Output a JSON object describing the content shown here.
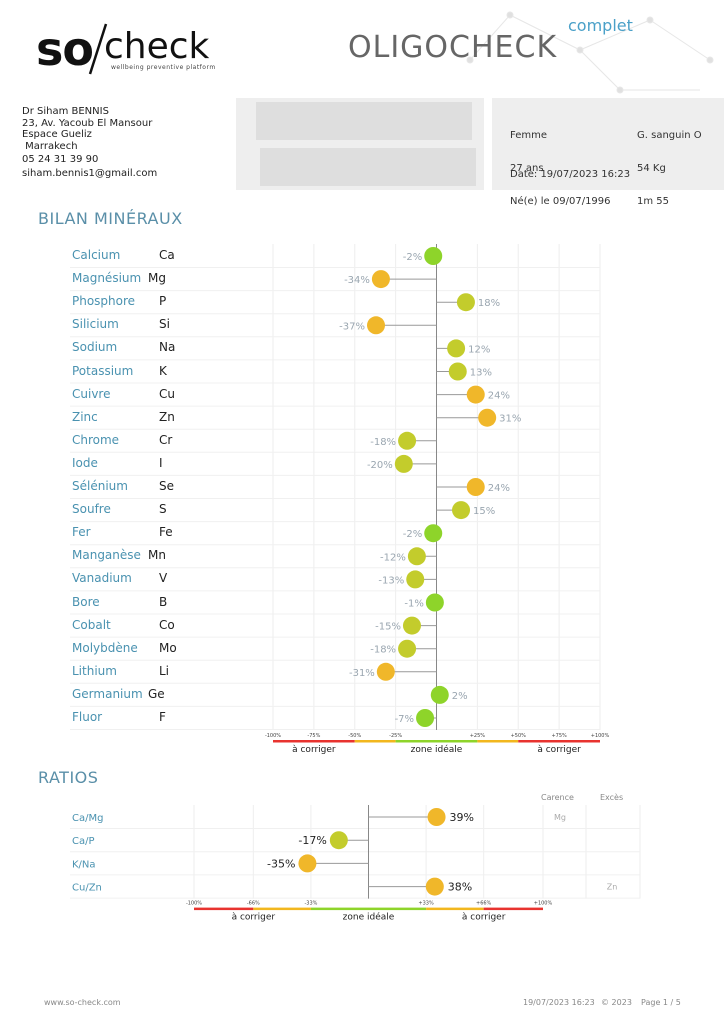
{
  "logo": {
    "so": "so",
    "check": "check",
    "tagline": "wellbeing preventive platform"
  },
  "header": {
    "title": "OLIGOCHECK",
    "subtitle": "complet"
  },
  "doctor": {
    "lines": [
      "Dr Siham BENNIS",
      "23, Av. Yacoub El Mansour",
      "Espace Gueliz",
      " Marrakech",
      "05 24 31 39 90",
      "siham.bennis1@gmail.com"
    ]
  },
  "patient": {
    "sex": "Femme",
    "age": "27 ans",
    "birth": "Né(e) le 09/07/1996",
    "blood": "G. sanguin O",
    "weight": "54 Kg",
    "height": "1m 55",
    "date": "Date: 19/07/2023 16:23"
  },
  "minerals_title": "BILAN MINÉRAUX",
  "ratios_title": "RATIOS",
  "colors": {
    "green": "#8ed42a",
    "yellowgreen": "#c3cc2c",
    "orange": "#f0b72a"
  },
  "chart_data": [
    {
      "type": "scatter",
      "title": "BILAN MINÉRAUX",
      "categories": [
        "Calcium",
        "Magnésium",
        "Phosphore",
        "Silicium",
        "Sodium",
        "Potassium",
        "Cuivre",
        "Zinc",
        "Chrome",
        "Iode",
        "Sélénium",
        "Soufre",
        "Fer",
        "Manganèse",
        "Vanadium",
        "Bore",
        "Cobalt",
        "Molybdène",
        "Lithium",
        "Germanium",
        "Fluor"
      ],
      "symbols": [
        "Ca",
        "Mg",
        "P",
        "Si",
        "Na",
        "K",
        "Cu",
        "Zn",
        "Cr",
        "I",
        "Se",
        "S",
        "Fe",
        "Mn",
        "V",
        "B",
        "Co",
        "Mo",
        "Li",
        "Ge",
        "F"
      ],
      "values": [
        -2,
        -34,
        18,
        -37,
        12,
        13,
        24,
        31,
        -18,
        -20,
        24,
        15,
        -2,
        -12,
        -13,
        -1,
        -15,
        -18,
        -31,
        2,
        -7
      ],
      "labels": [
        "-2%",
        "-34%",
        "18%",
        "-37%",
        "12%",
        "13%",
        "24%",
        "31%",
        "-18%",
        "-20%",
        "24%",
        "15%",
        "-2%",
        "-12%",
        "-13%",
        "-1%",
        "-15%",
        "-18%",
        "-31%",
        "2%",
        "-7%"
      ],
      "xlim": [
        -100,
        100
      ],
      "ticks": [
        "-100%",
        "-75%",
        "-50%",
        "-25%",
        "+25%",
        "+50%",
        "+75%",
        "+100%"
      ],
      "tick_values": [
        -100,
        -75,
        -50,
        -25,
        25,
        50,
        75,
        100
      ],
      "zones": [
        "à corriger",
        "zone idéale",
        "à corriger"
      ]
    },
    {
      "type": "scatter",
      "title": "RATIOS",
      "categories": [
        "Ca/Mg",
        "Ca/P",
        "K/Na",
        "Cu/Zn"
      ],
      "values": [
        39,
        -17,
        -35,
        38
      ],
      "labels": [
        "39%",
        "-17%",
        "-35%",
        "38%"
      ],
      "carence": [
        "Mg",
        "",
        "",
        ""
      ],
      "exces": [
        "",
        "",
        "",
        "Zn"
      ],
      "col_carence": "Carence",
      "col_exces": "Excès",
      "xlim": [
        -100,
        100
      ],
      "ticks": [
        "-100%",
        "-66%",
        "-33%",
        "+33%",
        "+66%",
        "+100%"
      ],
      "tick_values": [
        -100,
        -66,
        -33,
        33,
        66,
        100
      ],
      "zones": [
        "à corriger",
        "zone idéale",
        "à corriger"
      ]
    }
  ],
  "footer": {
    "website": "www.so-check.com",
    "datetime": "19/07/2023 16:23",
    "copyright": "© 2023",
    "page": "Page 1 / 5"
  }
}
